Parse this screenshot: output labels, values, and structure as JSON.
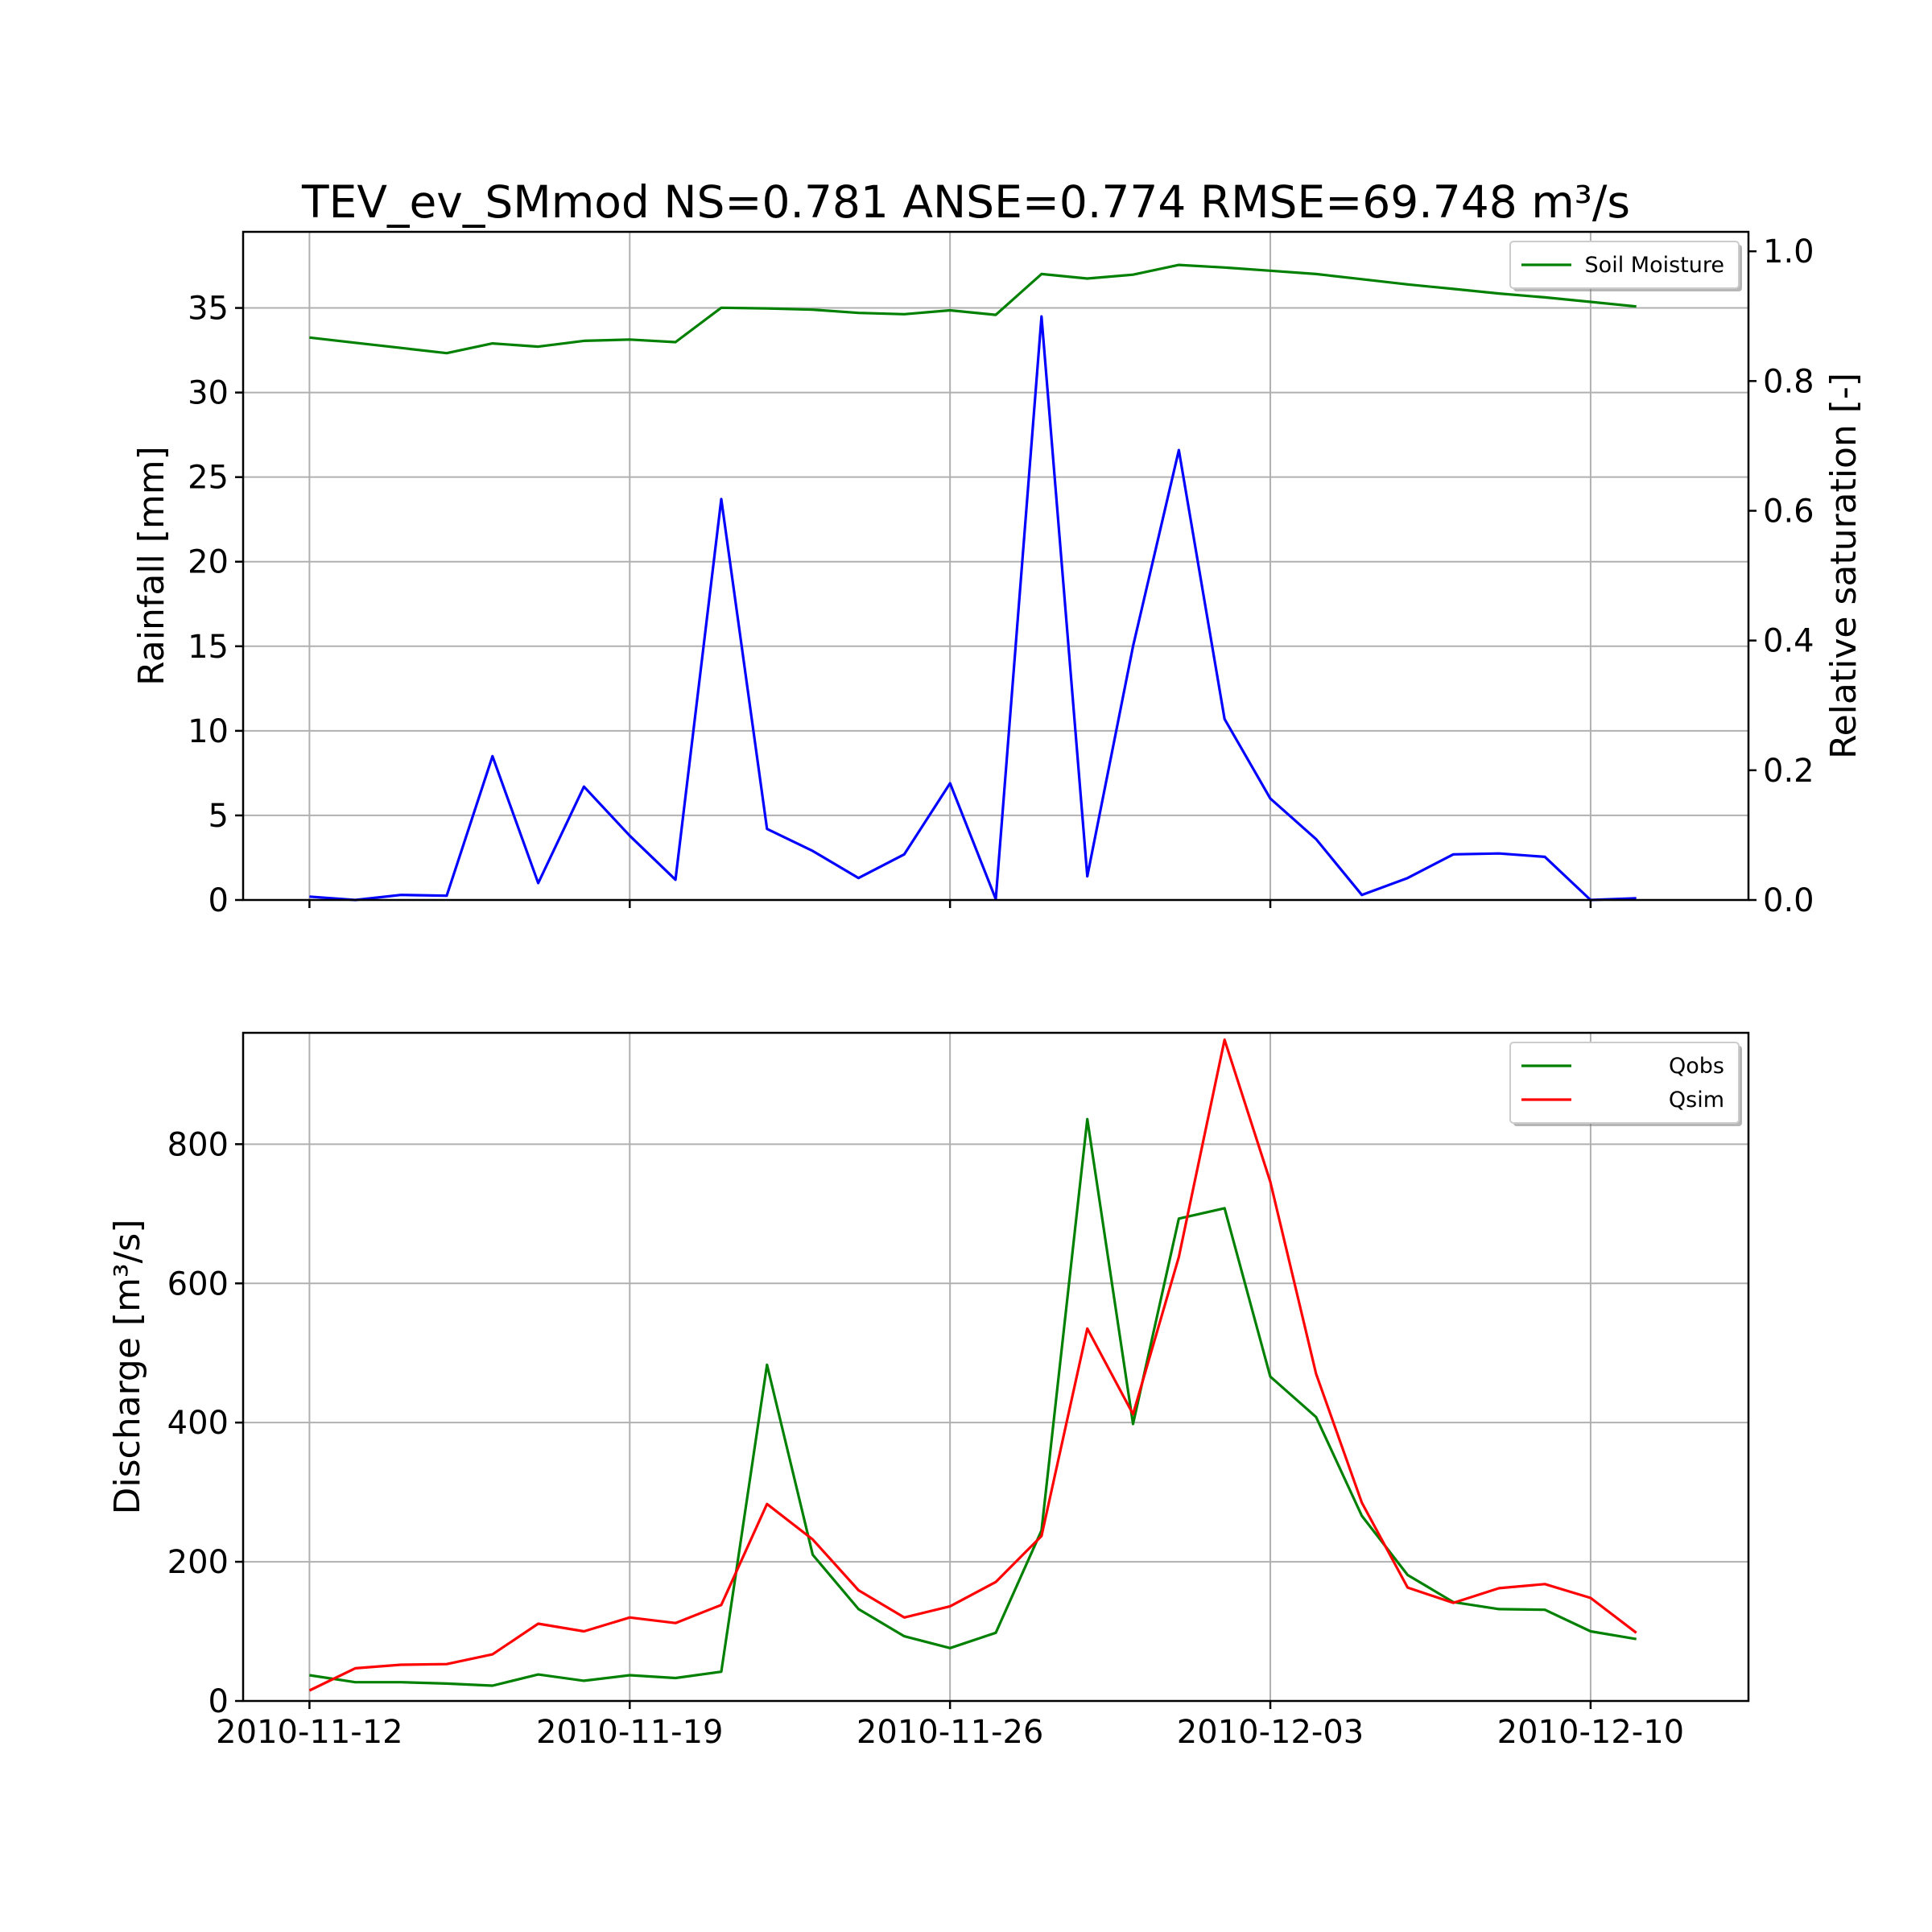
{
  "chart_data": [
    {
      "type": "line",
      "title": "TEV_ev_SMmod NS=0.781 ANSE=0.774 RMSE=69.748 m³/s",
      "x": [
        "2010-11-12",
        "2010-11-13",
        "2010-11-14",
        "2010-11-15",
        "2010-11-16",
        "2010-11-17",
        "2010-11-18",
        "2010-11-19",
        "2010-11-20",
        "2010-11-21",
        "2010-11-22",
        "2010-11-23",
        "2010-11-24",
        "2010-11-25",
        "2010-11-26",
        "2010-11-27",
        "2010-11-28",
        "2010-11-29",
        "2010-11-30",
        "2010-12-01",
        "2010-12-02",
        "2010-12-03",
        "2010-12-04",
        "2010-12-05",
        "2010-12-06",
        "2010-12-07",
        "2010-12-08",
        "2010-12-09",
        "2010-12-10",
        "2010-12-11"
      ],
      "xticks": [
        "2010-11-12",
        "2010-11-19",
        "2010-11-26",
        "2010-12-03",
        "2010-12-10"
      ],
      "xlim": [
        "2010-11-10.55",
        "2010-12-13.45"
      ],
      "ylabel": "Rainfall [mm]",
      "ylim": [
        0,
        39.5
      ],
      "yticks": [
        0,
        5,
        10,
        15,
        20,
        25,
        30,
        35
      ],
      "y2label": "Relative saturation [-]",
      "y2lim": [
        0,
        1.03
      ],
      "y2ticks": [
        0.0,
        0.2,
        0.4,
        0.6,
        0.8,
        1.0
      ],
      "grid": true,
      "legend_position": "top-right",
      "series": [
        {
          "axis": "y",
          "color": "#0000ff",
          "values": [
            0.2,
            0.0,
            0.3,
            0.25,
            8.5,
            1.0,
            6.7,
            3.8,
            1.2,
            23.7,
            4.2,
            2.9,
            1.3,
            2.7,
            6.9,
            0.05,
            34.5,
            1.4,
            15.0,
            26.6,
            10.7,
            6.0,
            3.6,
            0.3,
            1.3,
            2.7,
            2.75,
            2.55,
            0.0,
            0.1
          ]
        },
        {
          "axis": "y2",
          "name": "Soil Moisture",
          "color": "#008000",
          "values": [
            0.867,
            0.859,
            0.851,
            0.843,
            0.858,
            0.853,
            0.862,
            0.864,
            0.86,
            0.913,
            0.912,
            0.91,
            0.905,
            0.903,
            0.909,
            0.902,
            0.965,
            0.958,
            0.964,
            0.979,
            0.975,
            0.97,
            0.965,
            0.957,
            0.949,
            0.942,
            0.935,
            0.929,
            0.922,
            0.915
          ]
        }
      ]
    },
    {
      "type": "line",
      "x": [
        "2010-11-12",
        "2010-11-13",
        "2010-11-14",
        "2010-11-15",
        "2010-11-16",
        "2010-11-17",
        "2010-11-18",
        "2010-11-19",
        "2010-11-20",
        "2010-11-21",
        "2010-11-22",
        "2010-11-23",
        "2010-11-24",
        "2010-11-25",
        "2010-11-26",
        "2010-11-27",
        "2010-11-28",
        "2010-11-29",
        "2010-11-30",
        "2010-12-01",
        "2010-12-02",
        "2010-12-03",
        "2010-12-04",
        "2010-12-05",
        "2010-12-06",
        "2010-12-07",
        "2010-12-08",
        "2010-12-09",
        "2010-12-10",
        "2010-12-11"
      ],
      "xticks": [
        "2010-11-12",
        "2010-11-19",
        "2010-11-26",
        "2010-12-03",
        "2010-12-10"
      ],
      "xlim": [
        "2010-11-10.55",
        "2010-12-13.45"
      ],
      "ylabel": "Discharge [m³/s]",
      "ylim": [
        0,
        960
      ],
      "yticks": [
        0,
        200,
        400,
        600,
        800
      ],
      "grid": true,
      "legend_position": "top-right",
      "series": [
        {
          "name": "Qobs",
          "color": "#008000",
          "values": [
            37,
            27,
            27,
            25,
            22,
            38,
            29,
            37,
            33,
            42,
            483,
            210,
            132,
            93,
            76,
            98,
            245,
            836,
            398,
            693,
            708,
            466,
            408,
            266,
            181,
            142,
            132,
            131,
            100,
            89
          ]
        },
        {
          "name": "Qsim",
          "color": "#ff0000",
          "values": [
            15,
            47,
            52,
            53,
            67,
            111,
            100,
            120,
            112,
            138,
            283,
            232,
            159,
            120,
            136,
            171,
            237,
            535,
            412,
            638,
            950,
            746,
            470,
            285,
            163,
            141,
            162,
            168,
            148,
            98
          ]
        }
      ]
    }
  ]
}
